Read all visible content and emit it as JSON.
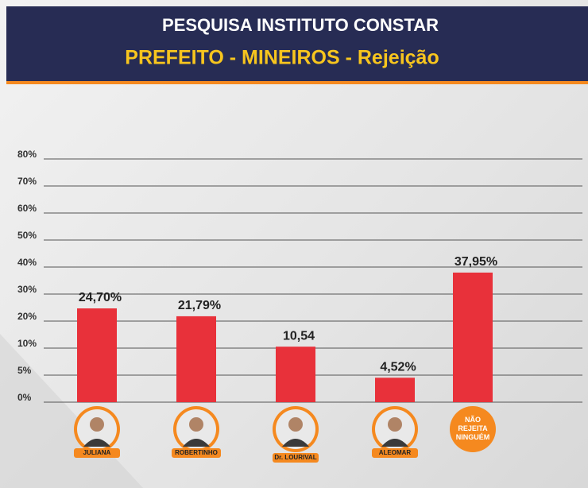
{
  "chart_data": {
    "type": "bar",
    "title": "PESQUISA INSTITUTO CONSTAR",
    "subtitle": "PREFEITO - MINEIROS - Rejeição",
    "categories": [
      "JULIANA",
      "ROBERTINHO",
      "Dr. LOURIVAL",
      "ALEOMAR",
      "NÃO REJEITA NINGUÉM"
    ],
    "values": [
      24.7,
      21.79,
      10.54,
      4.52,
      37.95
    ],
    "value_labels": [
      "24,70%",
      "21,79%",
      "10,54",
      "4,52%",
      "37,95%"
    ],
    "color": "#e8313a",
    "ylim": [
      0,
      80
    ],
    "yticks": [
      {
        "value": 0,
        "label": "0%"
      },
      {
        "value": 5,
        "label": "5%"
      },
      {
        "value": 10,
        "label": "10%"
      },
      {
        "value": 20,
        "label": "20%"
      },
      {
        "value": 30,
        "label": "30%"
      },
      {
        "value": 40,
        "label": "40%"
      },
      {
        "value": 50,
        "label": "50%"
      },
      {
        "value": 60,
        "label": "60%"
      },
      {
        "value": 70,
        "label": "70%"
      },
      {
        "value": 80,
        "label": "80%"
      }
    ],
    "grid": true
  }
}
